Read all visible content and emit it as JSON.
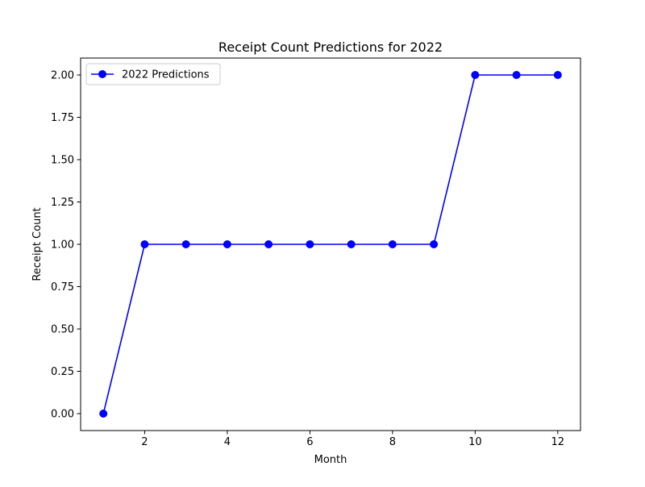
{
  "chart_data": {
    "type": "line",
    "title": "Receipt Count Predictions for 2022",
    "xlabel": "Month",
    "ylabel": "Receipt Count",
    "xlim": [
      0.45,
      12.55
    ],
    "ylim": [
      -0.1,
      2.1
    ],
    "xticks": [
      2,
      4,
      6,
      8,
      10,
      12
    ],
    "xtick_labels": [
      "2",
      "4",
      "6",
      "8",
      "10",
      "12"
    ],
    "yticks": [
      0,
      0.25,
      0.5,
      0.75,
      1.0,
      1.25,
      1.5,
      1.75,
      2.0
    ],
    "ytick_labels": [
      "0.00",
      "0.25",
      "0.50",
      "0.75",
      "1.00",
      "1.25",
      "1.50",
      "1.75",
      "2.00"
    ],
    "grid": false,
    "legend_position": "upper left",
    "series": [
      {
        "name": "2022 Predictions",
        "color": "#0000ff",
        "marker": "circle",
        "x": [
          1,
          2,
          3,
          4,
          5,
          6,
          7,
          8,
          9,
          10,
          11,
          12
        ],
        "y": [
          0,
          1,
          1,
          1,
          1,
          1,
          1,
          1,
          1,
          2,
          2,
          2
        ]
      }
    ]
  }
}
